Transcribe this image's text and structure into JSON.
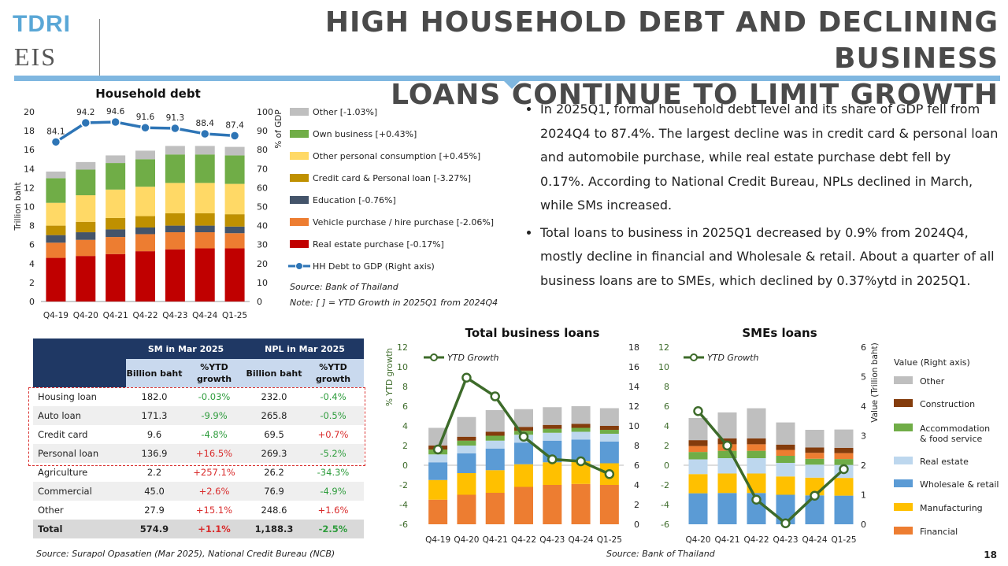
{
  "logo": {
    "top": "TDRI",
    "bottom": "EIS"
  },
  "title": {
    "line1": "HIGH HOUSEHOLD DEBT AND DECLINING BUSINESS",
    "line2": "LOANS CONTINUE TO LIMIT GROWTH"
  },
  "bullets": [
    "In 2025Q1, formal household debt level and its share of GDP fell from 2024Q4 to 87.4%. The largest decline was in credit card & personal loan and automobile purchase, while real estate purchase debt fell by 0.17%. According to National Credit Bureau, NPLs declined in March, while SMs increased.",
    "Total loans to business in 2025Q1 decreased by 0.9% from 2024Q4, mostly decline in financial and Wholesale & retail. About a quarter of all business loans are to SMEs, which declined by 0.37%ytd in 2025Q1."
  ],
  "page_number": "18",
  "table": {
    "group_headers": [
      "SM in Mar 2025",
      "NPL in Mar 2025"
    ],
    "sub_headers": [
      "Billion baht",
      "%YTD growth",
      "Billion baht",
      "%YTD growth"
    ],
    "rows": [
      {
        "cat": "Housing loan",
        "sm": "182.0",
        "sm_g": "-0.03%",
        "npl": "232.0",
        "npl_g": "-0.4%"
      },
      {
        "cat": "Auto loan",
        "sm": "171.3",
        "sm_g": "-9.9%",
        "npl": "265.8",
        "npl_g": "-0.5%"
      },
      {
        "cat": "Credit card",
        "sm": "9.6",
        "sm_g": "-4.8%",
        "npl": "69.5",
        "npl_g": "+0.7%"
      },
      {
        "cat": "Personal loan",
        "sm": "136.9",
        "sm_g": "+16.5%",
        "npl": "269.3",
        "npl_g": "-5.2%"
      },
      {
        "cat": "Agriculture",
        "sm": "2.2",
        "sm_g": "+257.1%",
        "npl": "26.2",
        "npl_g": "-34.3%"
      },
      {
        "cat": "Commercial",
        "sm": "45.0",
        "sm_g": "+2.6%",
        "npl": "76.9",
        "npl_g": "-4.9%"
      },
      {
        "cat": "Other",
        "sm": "27.9",
        "sm_g": "+15.1%",
        "npl": "248.6",
        "npl_g": "+1.6%"
      },
      {
        "cat": "Total",
        "sm": "574.9",
        "sm_g": "+1.1%",
        "npl": "1,188.3",
        "npl_g": "-2.5%"
      }
    ],
    "source": "Source: Surapol Opasatien (Mar 2025), National Credit Bureau (NCB)"
  },
  "colors": {
    "real_estate_red": "#c00000",
    "vehicle_orange": "#ed7d31",
    "education_navy": "#44546a",
    "credit_card_gold": "#bf9000",
    "other_consumption_yellow": "#ffd966",
    "own_business_green": "#70ad47",
    "other_gray": "#bfbfbf",
    "line_blue": "#2e75b6",
    "line_green": "#3d6b2a",
    "financial": "#ed7d31",
    "manufacturing": "#ffc000",
    "wholesale": "#5b9bd5",
    "realestate_biz": "#bdd7ee",
    "accommodation": "#70ad47",
    "construction": "#843c0c"
  },
  "chart_data": [
    {
      "type": "bar",
      "title": "Household debt",
      "ylabel": "Trillion baht",
      "y2label": "% of GDP",
      "ylim": [
        0,
        20
      ],
      "y2lim": [
        0,
        100
      ],
      "yticks": [
        "0",
        "2",
        "4",
        "6",
        "8",
        "10",
        "12",
        "14",
        "16",
        "18",
        "20"
      ],
      "y2ticks": [
        "0",
        "10",
        "20",
        "30",
        "40",
        "50",
        "60",
        "70",
        "80",
        "90",
        "100"
      ],
      "categories": [
        "Q4-19",
        "Q4-20",
        "Q4-21",
        "Q4-22",
        "Q4-23",
        "Q4-24",
        "Q1-25"
      ],
      "series": [
        {
          "name": "Real estate purchase [-0.17%]",
          "key": "real_estate",
          "values": [
            4.6,
            4.8,
            5.0,
            5.3,
            5.5,
            5.6,
            5.6
          ]
        },
        {
          "name": "Vehicle purchase / hire purchase [-2.06%]",
          "key": "vehicle",
          "values": [
            1.6,
            1.7,
            1.8,
            1.8,
            1.8,
            1.7,
            1.6
          ]
        },
        {
          "name": "Education [-0.76%]",
          "key": "education",
          "values": [
            0.8,
            0.8,
            0.8,
            0.7,
            0.7,
            0.7,
            0.7
          ]
        },
        {
          "name": "Credit card & Personal loan [-3.27%]",
          "key": "credit_card",
          "values": [
            1.0,
            1.1,
            1.2,
            1.2,
            1.3,
            1.3,
            1.3
          ]
        },
        {
          "name": "Other personal consumption [+0.45%]",
          "key": "other_consumption",
          "values": [
            2.4,
            2.8,
            3.0,
            3.1,
            3.2,
            3.2,
            3.2
          ]
        },
        {
          "name": "Own business [+0.43%]",
          "key": "own_business",
          "values": [
            2.6,
            2.7,
            2.8,
            2.9,
            3.0,
            3.0,
            3.0
          ]
        },
        {
          "name": "Other [-1.03%]",
          "key": "other",
          "values": [
            0.7,
            0.8,
            0.8,
            0.9,
            0.9,
            0.9,
            0.9
          ]
        }
      ],
      "line": {
        "name": "HH Debt to GDP (Right axis)",
        "values": [
          84.1,
          94.2,
          94.6,
          91.6,
          91.3,
          88.4,
          87.4
        ],
        "labels": [
          "84.1",
          "94.2",
          "94.6",
          "91.6",
          "91.3",
          "88.4",
          "87.4"
        ]
      },
      "legend_order": [
        "Other [-1.03%]",
        "Own business [+0.43%]",
        "Other personal consumption [+0.45%]",
        "Credit card & Personal loan [-3.27%]",
        "Education [-0.76%]",
        "Vehicle purchase / hire purchase [-2.06%]",
        "Real estate purchase [-0.17%]",
        "HH Debt to GDP (Right axis)"
      ],
      "source": "Source: Bank of Thailand",
      "note": "Note: [ ] = YTD Growth in 2025Q1 from 2024Q4",
      "legend_position": "right"
    },
    {
      "type": "bar",
      "title": "Total business loans",
      "ylabel": "% YTD growth",
      "ylim": [
        -6,
        12
      ],
      "y2lim": [
        0,
        18
      ],
      "yticks": [
        "-6",
        "-4",
        "-2",
        "0",
        "2",
        "4",
        "6",
        "8",
        "10",
        "12"
      ],
      "y2ticks": [
        "0",
        "2",
        "4",
        "6",
        "8",
        "10",
        "12",
        "14",
        "16",
        "18"
      ],
      "categories": [
        "Q4-19",
        "Q4-20",
        "Q4-21",
        "Q4-22",
        "Q4-23",
        "Q4-24",
        "Q1-25"
      ],
      "series": [
        {
          "name": "Financial",
          "key": "financial",
          "values": [
            2.5,
            3.0,
            3.2,
            3.8,
            4.0,
            4.1,
            4.0
          ]
        },
        {
          "name": "Manufacturing",
          "key": "manufacturing",
          "values": [
            2.0,
            2.2,
            2.3,
            2.3,
            2.3,
            2.3,
            2.2
          ]
        },
        {
          "name": "Wholesale & retail",
          "key": "wholesale",
          "values": [
            1.8,
            2.0,
            2.2,
            2.2,
            2.2,
            2.2,
            2.2
          ]
        },
        {
          "name": "Real estate",
          "key": "realestate_biz",
          "values": [
            0.8,
            0.8,
            0.8,
            0.8,
            0.8,
            0.8,
            0.8
          ]
        },
        {
          "name": "Accommodation & food service",
          "key": "accommodation",
          "values": [
            0.5,
            0.5,
            0.5,
            0.4,
            0.4,
            0.4,
            0.4
          ]
        },
        {
          "name": "Construction",
          "key": "construction",
          "values": [
            0.4,
            0.4,
            0.4,
            0.4,
            0.4,
            0.4,
            0.4
          ]
        },
        {
          "name": "Other",
          "key": "other",
          "values": [
            1.8,
            2.0,
            2.2,
            1.8,
            1.8,
            1.8,
            1.8
          ]
        }
      ],
      "line": {
        "name": "YTD Growth",
        "values": [
          1.6,
          8.9,
          7.0,
          2.9,
          0.6,
          0.4,
          -0.9
        ]
      },
      "source": "Source: Bank of Thailand",
      "legend_position": "top-left"
    },
    {
      "type": "bar",
      "title": "SMEs loans",
      "y2label": "Value (Trillion baht)",
      "ylim": [
        -6,
        12
      ],
      "y2lim": [
        0,
        6
      ],
      "yticks": [
        "-6",
        "-4",
        "-2",
        "0",
        "2",
        "4",
        "6",
        "8",
        "10",
        "12"
      ],
      "y2ticks": [
        "0",
        "1",
        "2",
        "3",
        "4",
        "5",
        "6"
      ],
      "categories": [
        "Q4-20",
        "Q4-21",
        "Q4-22",
        "Q4-23",
        "Q4-24",
        "Q1-25"
      ],
      "series": [
        {
          "name": "Financial",
          "key": "financial",
          "values": [
            0.0,
            0.0,
            0.0,
            0.0,
            0.0,
            0.0
          ]
        },
        {
          "name": "Manufacturing",
          "key": "manufacturing",
          "values": [
            0.0,
            0.0,
            0.0,
            0.0,
            0.0,
            0.0
          ]
        },
        {
          "name": "Wholesale & retail",
          "key": "wholesale",
          "values": [
            1.05,
            1.06,
            1.06,
            1.0,
            0.98,
            0.97
          ]
        },
        {
          "name": "Real estate",
          "key": "realestate_biz",
          "values": [
            0.0,
            0.0,
            0.0,
            0.0,
            0.0,
            0.0
          ]
        },
        {
          "name": "Accommodation & food service",
          "key": "accommodation",
          "values": [
            0.0,
            0.0,
            0.0,
            0.0,
            0.0,
            0.0
          ]
        },
        {
          "name": "Construction",
          "key": "construction",
          "values": [
            0.0,
            0.0,
            0.0,
            0.0,
            0.0,
            0.0
          ]
        },
        {
          "name": "Other",
          "key": "other",
          "values": [
            0.0,
            0.0,
            0.0,
            0.0,
            0.0,
            0.0
          ]
        }
      ],
      "stack": [
        {
          "key": "wholesale",
          "values": [
            1.05,
            1.06,
            1.06,
            1.0,
            0.98,
            0.97
          ]
        },
        {
          "key": "manufacturing",
          "values": [
            0.65,
            0.66,
            0.66,
            0.62,
            0.6,
            0.6
          ]
        },
        {
          "key": "realestate_biz",
          "values": [
            0.5,
            0.52,
            0.52,
            0.46,
            0.44,
            0.44
          ]
        },
        {
          "key": "accommodation",
          "values": [
            0.25,
            0.25,
            0.25,
            0.24,
            0.2,
            0.2
          ]
        },
        {
          "key": "financial",
          "values": [
            0.2,
            0.22,
            0.22,
            0.2,
            0.2,
            0.2
          ]
        },
        {
          "key": "construction",
          "values": [
            0.2,
            0.2,
            0.2,
            0.18,
            0.18,
            0.18
          ]
        },
        {
          "key": "other",
          "values": [
            0.75,
            0.88,
            1.02,
            0.75,
            0.6,
            0.62
          ]
        }
      ],
      "line": {
        "name": "YTD Growth",
        "values": [
          5.5,
          2.0,
          -3.5,
          -5.9,
          -3.1,
          -0.4
        ]
      },
      "legend_title": "Value (Right axis)",
      "legend": [
        "Other",
        "Construction",
        "Accommodation & food service",
        "Real estate",
        "Wholesale & retail",
        "Manufacturing",
        "Financial"
      ],
      "legend_position": "right"
    }
  ]
}
